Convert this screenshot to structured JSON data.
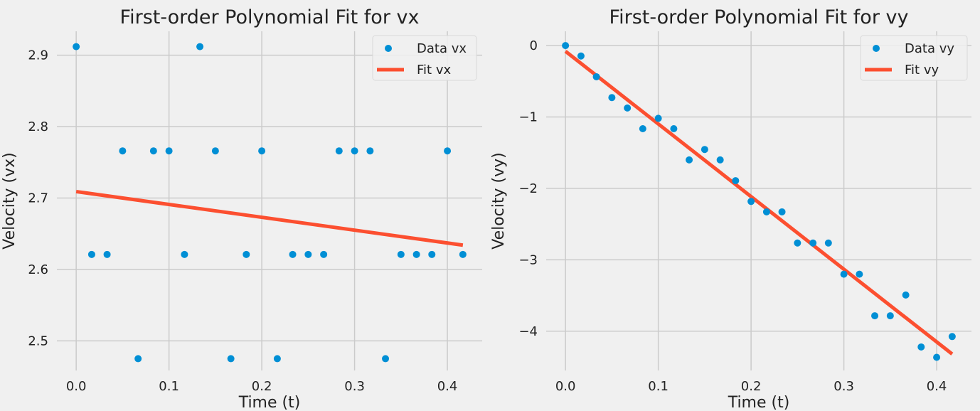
{
  "chart_data": [
    {
      "type": "scatter",
      "title": "First-order Polynomial Fit for vx",
      "xlabel": "Time (t)",
      "ylabel": "Velocity (vx)",
      "xlim": [
        -0.0208,
        0.4375
      ],
      "ylim": [
        2.4585,
        2.9335
      ],
      "xticks": [
        0.0,
        0.1,
        0.2,
        0.3,
        0.4
      ],
      "xtick_labels": [
        "0.0",
        "0.1",
        "0.2",
        "0.3",
        "0.4"
      ],
      "yticks": [
        2.5,
        2.6,
        2.7,
        2.8,
        2.9
      ],
      "ytick_labels": [
        "2.5",
        "2.6",
        "2.7",
        "2.8",
        "2.9"
      ],
      "grid": true,
      "legend_position": "top-right",
      "series": [
        {
          "name": "Data vx",
          "kind": "points",
          "color": "#008fd5",
          "x": [
            0.0,
            0.0167,
            0.0333,
            0.05,
            0.0667,
            0.0833,
            0.1,
            0.1167,
            0.1333,
            0.15,
            0.1667,
            0.1833,
            0.2,
            0.2167,
            0.2333,
            0.25,
            0.2667,
            0.2833,
            0.3,
            0.3167,
            0.3333,
            0.35,
            0.3667,
            0.3833,
            0.4,
            0.4167
          ],
          "y": [
            2.912,
            2.621,
            2.621,
            2.766,
            2.475,
            2.766,
            2.766,
            2.621,
            2.912,
            2.766,
            2.475,
            2.621,
            2.766,
            2.475,
            2.621,
            2.621,
            2.621,
            2.766,
            2.766,
            2.766,
            2.475,
            2.621,
            2.621,
            2.621,
            2.766,
            2.621
          ]
        },
        {
          "name": "Fit vx",
          "kind": "line",
          "color": "#fc4f30",
          "x": [
            0.0,
            0.4167
          ],
          "y": [
            2.709,
            2.634
          ]
        }
      ]
    },
    {
      "type": "scatter",
      "title": "First-order Polynomial Fit for vy",
      "xlabel": "Time (t)",
      "ylabel": "Velocity (vy)",
      "xlim": [
        -0.0208,
        0.4375
      ],
      "ylim": [
        -4.55,
        0.2
      ],
      "xticks": [
        0.0,
        0.1,
        0.2,
        0.3,
        0.4
      ],
      "xtick_labels": [
        "0.0",
        "0.1",
        "0.2",
        "0.3",
        "0.4"
      ],
      "yticks": [
        -4,
        -3,
        -2,
        -1,
        0
      ],
      "ytick_labels": [
        "−4",
        "−3",
        "−2",
        "−1",
        "0"
      ],
      "grid": true,
      "legend_position": "top-right",
      "series": [
        {
          "name": "Data vy",
          "kind": "points",
          "color": "#008fd5",
          "x": [
            0.0,
            0.0167,
            0.0333,
            0.05,
            0.0667,
            0.0833,
            0.1,
            0.1167,
            0.1333,
            0.15,
            0.1667,
            0.1833,
            0.2,
            0.2167,
            0.2333,
            0.25,
            0.2667,
            0.2833,
            0.3,
            0.3167,
            0.3333,
            0.35,
            0.3667,
            0.3833,
            0.4,
            0.4167
          ],
          "y": [
            0.0,
            -0.146,
            -0.437,
            -0.728,
            -0.874,
            -1.164,
            -1.019,
            -1.164,
            -1.601,
            -1.455,
            -1.601,
            -1.892,
            -2.183,
            -2.329,
            -2.329,
            -2.765,
            -2.765,
            -2.765,
            -3.202,
            -3.202,
            -3.784,
            -3.784,
            -3.493,
            -4.221,
            -4.366,
            -4.075
          ]
        },
        {
          "name": "Fit vy",
          "kind": "line",
          "color": "#fc4f30",
          "x": [
            0.0,
            0.4167
          ],
          "y": [
            -0.08,
            -4.32
          ]
        }
      ]
    }
  ]
}
